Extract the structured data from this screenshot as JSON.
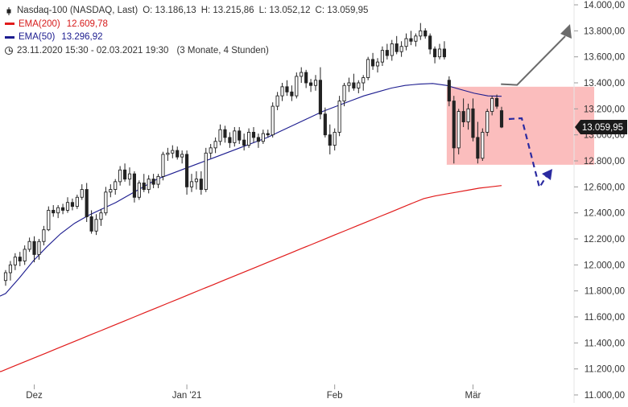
{
  "legend": {
    "instrument": "Nasdaq-100 (NASDAQ, Last)",
    "open": "O: 13.186,13",
    "high": "H: 13.215,86",
    "low": "L: 13.052,12",
    "close": "C: 13.059,95",
    "ema200_label": "EMA(200)",
    "ema200_value": "12.609,78",
    "ema50_label": "EMA(50)",
    "ema50_value": "13.296,92",
    "period": "23.11.2020 15:30 - 02.03.2021 19:30",
    "range": "(3 Monate, 4 Stunden)"
  },
  "colors": {
    "candle": "#222222",
    "ema200": "#e11b1b",
    "ema50": "#1c1c8f",
    "zone_fill": "#fbb6b6",
    "up_arrow": "#6b6b6b",
    "down_arrow": "#2a2aa0",
    "price_label_bg": "#1a1a1a"
  },
  "chart_data": {
    "type": "candlestick",
    "y_axis_position": "right",
    "ylim": [
      11000,
      14000
    ],
    "yticks": [
      "14.000,00",
      "13.800,00",
      "13.600,00",
      "13.400,00",
      "13.200,00",
      "13.000,00",
      "12.800,00",
      "12.600,00",
      "12.400,00",
      "12.200,00",
      "12.000,00",
      "11.800,00",
      "11.600,00",
      "11.400,00",
      "11.200,00",
      "11.000,00"
    ],
    "ytick_values": [
      14000,
      13800,
      13600,
      13400,
      13200,
      13000,
      12800,
      12600,
      12400,
      12200,
      12000,
      11800,
      11600,
      11400,
      11200,
      11000
    ],
    "xticks": [
      {
        "label": "Dez",
        "index": 6
      },
      {
        "label": "Jan '21",
        "index": 38
      },
      {
        "label": "Feb",
        "index": 69
      },
      {
        "label": "Mär",
        "index": 98
      }
    ],
    "last_price_label": "13.059,95",
    "last_price": 13059.95,
    "candles": [
      [
        11880,
        11960,
        11840,
        11940
      ],
      [
        11940,
        12030,
        11880,
        12000
      ],
      [
        12000,
        12090,
        11960,
        12060
      ],
      [
        12060,
        12100,
        11990,
        12030
      ],
      [
        12030,
        12150,
        12000,
        12120
      ],
      [
        12120,
        12210,
        12100,
        12180
      ],
      [
        12180,
        12220,
        12020,
        12080
      ],
      [
        12080,
        12200,
        12040,
        12180
      ],
      [
        12180,
        12300,
        12150,
        12270
      ],
      [
        12270,
        12450,
        12260,
        12420
      ],
      [
        12420,
        12460,
        12370,
        12400
      ],
      [
        12400,
        12460,
        12360,
        12440
      ],
      [
        12440,
        12470,
        12390,
        12420
      ],
      [
        12420,
        12520,
        12400,
        12480
      ],
      [
        12480,
        12510,
        12420,
        12450
      ],
      [
        12450,
        12540,
        12430,
        12520
      ],
      [
        12520,
        12620,
        12500,
        12580
      ],
      [
        12580,
        12630,
        12330,
        12370
      ],
      [
        12370,
        12420,
        12240,
        12260
      ],
      [
        12260,
        12390,
        12230,
        12350
      ],
      [
        12350,
        12430,
        12300,
        12400
      ],
      [
        12400,
        12600,
        12380,
        12560
      ],
      [
        12560,
        12620,
        12520,
        12580
      ],
      [
        12580,
        12660,
        12540,
        12640
      ],
      [
        12640,
        12760,
        12610,
        12730
      ],
      [
        12730,
        12780,
        12640,
        12660
      ],
      [
        12660,
        12750,
        12610,
        12700
      ],
      [
        12700,
        12720,
        12480,
        12520
      ],
      [
        12520,
        12650,
        12500,
        12630
      ],
      [
        12630,
        12700,
        12560,
        12580
      ],
      [
        12580,
        12690,
        12550,
        12660
      ],
      [
        12660,
        12700,
        12590,
        12620
      ],
      [
        12620,
        12700,
        12590,
        12680
      ],
      [
        12680,
        12870,
        12650,
        12850
      ],
      [
        12850,
        12900,
        12800,
        12860
      ],
      [
        12860,
        12920,
        12820,
        12880
      ],
      [
        12880,
        12910,
        12810,
        12830
      ],
      [
        12830,
        12880,
        12780,
        12850
      ],
      [
        12850,
        12880,
        12540,
        12600
      ],
      [
        12600,
        12700,
        12560,
        12640
      ],
      [
        12640,
        12720,
        12580,
        12660
      ],
      [
        12660,
        12720,
        12540,
        12580
      ],
      [
        12580,
        12900,
        12560,
        12860
      ],
      [
        12860,
        12930,
        12820,
        12900
      ],
      [
        12900,
        12980,
        12860,
        12950
      ],
      [
        12950,
        13080,
        12920,
        13040
      ],
      [
        13040,
        13070,
        12940,
        12980
      ],
      [
        12980,
        13020,
        12900,
        12940
      ],
      [
        12940,
        13060,
        12910,
        13030
      ],
      [
        13030,
        13060,
        12930,
        12960
      ],
      [
        12960,
        13010,
        12880,
        12920
      ],
      [
        12920,
        13050,
        12900,
        13020
      ],
      [
        13020,
        13060,
        12940,
        12980
      ],
      [
        12980,
        13010,
        12900,
        12950
      ],
      [
        12950,
        13040,
        12930,
        13010
      ],
      [
        13010,
        13040,
        12980,
        13000
      ],
      [
        13000,
        13250,
        12980,
        13220
      ],
      [
        13220,
        13330,
        13190,
        13300
      ],
      [
        13300,
        13400,
        13260,
        13370
      ],
      [
        13370,
        13420,
        13300,
        13330
      ],
      [
        13330,
        13380,
        13260,
        13300
      ],
      [
        13300,
        13480,
        13280,
        13450
      ],
      [
        13450,
        13520,
        13400,
        13480
      ],
      [
        13480,
        13500,
        13360,
        13400
      ],
      [
        13400,
        13430,
        13330,
        13380
      ],
      [
        13380,
        13460,
        13340,
        13420
      ],
      [
        13420,
        13520,
        13120,
        13160
      ],
      [
        13160,
        13210,
        12980,
        13000
      ],
      [
        13000,
        13080,
        12850,
        12920
      ],
      [
        12920,
        13050,
        12880,
        13020
      ],
      [
        13020,
        13300,
        12990,
        13260
      ],
      [
        13260,
        13400,
        13220,
        13380
      ],
      [
        13380,
        13440,
        13330,
        13400
      ],
      [
        13400,
        13470,
        13340,
        13360
      ],
      [
        13360,
        13420,
        13320,
        13400
      ],
      [
        13400,
        13460,
        13340,
        13440
      ],
      [
        13440,
        13600,
        13420,
        13580
      ],
      [
        13580,
        13630,
        13500,
        13530
      ],
      [
        13530,
        13590,
        13480,
        13560
      ],
      [
        13560,
        13680,
        13530,
        13650
      ],
      [
        13650,
        13700,
        13580,
        13610
      ],
      [
        13610,
        13730,
        13570,
        13700
      ],
      [
        13700,
        13760,
        13620,
        13640
      ],
      [
        13640,
        13720,
        13600,
        13680
      ],
      [
        13680,
        13780,
        13650,
        13740
      ],
      [
        13740,
        13800,
        13690,
        13720
      ],
      [
        13720,
        13780,
        13680,
        13760
      ],
      [
        13760,
        13860,
        13730,
        13800
      ],
      [
        13800,
        13820,
        13740,
        13760
      ],
      [
        13760,
        13780,
        13620,
        13660
      ],
      [
        13660,
        13680,
        13550,
        13600
      ],
      [
        13600,
        13700,
        13580,
        13660
      ],
      [
        13660,
        13720,
        13580,
        13600
      ],
      [
        13420,
        13450,
        13220,
        13260
      ],
      [
        13260,
        13300,
        12780,
        12900
      ],
      [
        12900,
        13200,
        12850,
        13180
      ],
      [
        13180,
        13280,
        13060,
        13100
      ],
      [
        13100,
        13240,
        13040,
        13200
      ],
      [
        13200,
        13280,
        12950,
        12980
      ],
      [
        12980,
        13100,
        12780,
        12820
      ],
      [
        12820,
        13050,
        12800,
        13020
      ],
      [
        13020,
        13200,
        12990,
        13180
      ],
      [
        13180,
        13300,
        13150,
        13280
      ],
      [
        13280,
        13310,
        13200,
        13220
      ],
      [
        13186,
        13216,
        13052,
        13060
      ]
    ],
    "series": [
      {
        "name": "EMA(200)",
        "values": [
          11180,
          11215,
          11250,
          11285,
          11320,
          11355,
          11390,
          11425,
          11460,
          11495,
          11530,
          11565,
          11600,
          11635,
          11670,
          11705,
          11740,
          11775,
          11810,
          11845,
          11880,
          11915,
          11950,
          11985,
          12020,
          12055,
          12090,
          12125,
          12160,
          12195,
          12230,
          12265,
          12300,
          12335,
          12370,
          12405,
          12440,
          12475,
          12510,
          12530,
          12545,
          12560,
          12575,
          12590,
          12600,
          12610
        ]
      },
      {
        "name": "EMA(50)",
        "values": [
          11780,
          11900,
          12030,
          12140,
          12240,
          12320,
          12380,
          12430,
          12480,
          12540,
          12600,
          12660,
          12700,
          12740,
          12780,
          12820,
          12860,
          12900,
          12940,
          12980,
          13030,
          13080,
          13130,
          13180,
          13220,
          13260,
          13300,
          13330,
          13360,
          13380,
          13390,
          13395,
          13380,
          13350,
          13320,
          13300,
          13297
        ]
      }
    ],
    "annotations": {
      "zone": {
        "x_from_index": 93,
        "x_to_index": 109,
        "y_low": 12770,
        "y_high": 13370
      },
      "up_arrow": {
        "from_index": 101,
        "from_y": 13390,
        "to_index": 109,
        "to_y": 13830
      },
      "down_arrow": {
        "from_index": 101,
        "from_y": 13080,
        "to_index": 107,
        "to_y": 12540
      }
    }
  }
}
